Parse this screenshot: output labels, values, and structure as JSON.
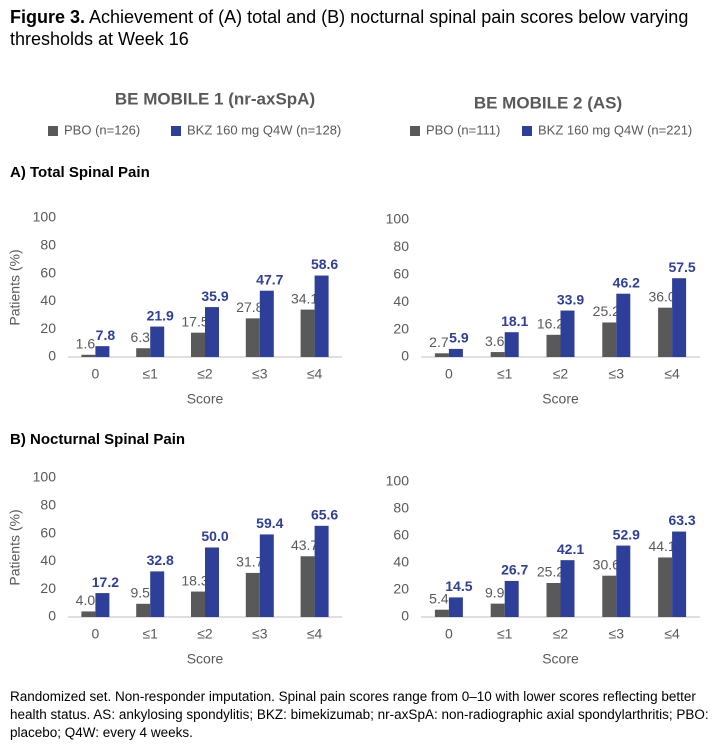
{
  "figure_label": "Figure 3.",
  "title": "Achievement of (A) total and (B) nocturnal spinal pain scores below varying thresholds at Week 16",
  "studies": [
    "BE MOBILE 1 (nr-axSpA)",
    "BE MOBILE 2 (AS)"
  ],
  "sections": [
    "A) Total Spinal Pain",
    "B) Nocturnal Spinal Pain"
  ],
  "footnote": "Randomized set. Non-responder imputation. Spinal pain scores range from 0–10 with lower scores reflecting better health status. AS: ankylosing spondylitis; BKZ: bimekizumab; nr-axSpA: non-radiographic axial spondylarthritis; PBO: placebo; Q4W: every 4 weeks.",
  "chart_data": [
    {
      "type": "bar",
      "categories": [
        "0",
        "≤1",
        "≤2",
        "≤3",
        "≤4"
      ],
      "xlabel": "Score",
      "ylabel": "Patients (%)",
      "ylim": [
        0,
        100
      ],
      "yticks": [
        0,
        20,
        40,
        60,
        80,
        100
      ],
      "series": [
        {
          "name": "PBO (n=126)",
          "color": "#595959",
          "values": [
            1.6,
            6.3,
            17.5,
            27.8,
            34.1
          ],
          "value_labels": [
            "1.6",
            "6.3",
            "17.5",
            "27.8",
            "34.1"
          ]
        },
        {
          "name": "BKZ 160 mg Q4W (n=128)",
          "color": "#2e3f99",
          "values": [
            7.8,
            21.9,
            35.9,
            47.7,
            58.6
          ],
          "value_labels": [
            "7.8",
            "21.9",
            "35.9",
            "47.7",
            "58.6"
          ]
        }
      ]
    },
    {
      "type": "bar",
      "categories": [
        "0",
        "≤1",
        "≤2",
        "≤3",
        "≤4"
      ],
      "xlabel": "Score",
      "ylim": [
        0,
        100
      ],
      "yticks": [
        0,
        20,
        40,
        60,
        80,
        100
      ],
      "series": [
        {
          "name": "PBO (n=111)",
          "color": "#595959",
          "values": [
            2.7,
            3.6,
            16.2,
            25.2,
            36.0
          ],
          "value_labels": [
            "2.7",
            "3.6",
            "16.2",
            "25.2",
            "36.0"
          ]
        },
        {
          "name": "BKZ 160 mg Q4W (n=221)",
          "color": "#2e3f99",
          "values": [
            5.9,
            18.1,
            33.9,
            46.2,
            57.5
          ],
          "value_labels": [
            "5.9",
            "18.1",
            "33.9",
            "46.2",
            "57.5"
          ]
        }
      ]
    },
    {
      "type": "bar",
      "categories": [
        "0",
        "≤1",
        "≤2",
        "≤3",
        "≤4"
      ],
      "xlabel": "Score",
      "ylabel": "Patients (%)",
      "ylim": [
        0,
        100
      ],
      "yticks": [
        0,
        20,
        40,
        60,
        80,
        100
      ],
      "series": [
        {
          "color": "#595959",
          "values": [
            4.0,
            9.5,
            18.3,
            31.7,
            43.7
          ],
          "value_labels": [
            "4.0",
            "9.5",
            "18.3",
            "31.7",
            "43.7"
          ]
        },
        {
          "color": "#2e3f99",
          "values": [
            17.2,
            32.8,
            50.0,
            59.4,
            65.6
          ],
          "value_labels": [
            "17.2",
            "32.8",
            "50.0",
            "59.4",
            "65.6"
          ]
        }
      ]
    },
    {
      "type": "bar",
      "categories": [
        "0",
        "≤1",
        "≤2",
        "≤3",
        "≤4"
      ],
      "xlabel": "Score",
      "ylim": [
        0,
        100
      ],
      "yticks": [
        0,
        20,
        40,
        60,
        80,
        100
      ],
      "series": [
        {
          "color": "#595959",
          "values": [
            5.4,
            9.9,
            25.2,
            30.6,
            44.1
          ],
          "value_labels": [
            "5.4",
            "9.9",
            "25.2",
            "30.6",
            "44.1"
          ]
        },
        {
          "color": "#2e3f99",
          "values": [
            14.5,
            26.7,
            42.1,
            52.9,
            63.3
          ],
          "value_labels": [
            "14.5",
            "26.7",
            "42.1",
            "52.9",
            "63.3"
          ]
        }
      ]
    }
  ]
}
